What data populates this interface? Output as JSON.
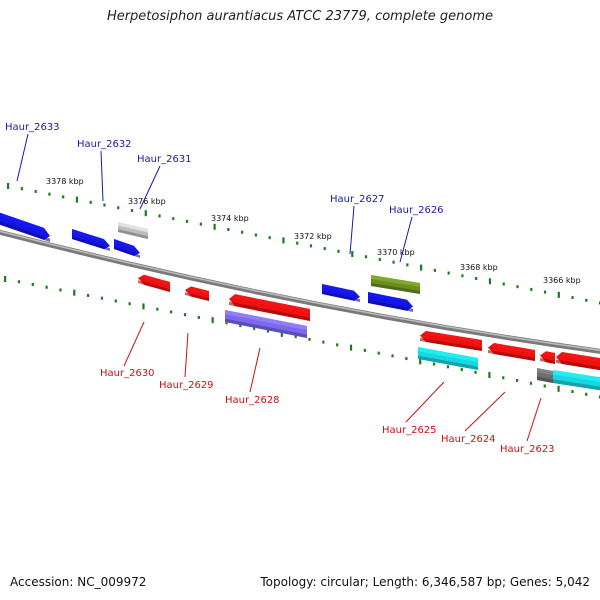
{
  "title": "Herpetosiphon aurantiacus ATCC 23779, complete genome",
  "footer": {
    "accession": "Accession: NC_009972",
    "summary": "Topology: circular; Length: 6,346,587 bp; Genes: 5,042"
  },
  "colors": {
    "backbone": "#888888",
    "tick": "#1e7a1e",
    "forward_label": "#1a1aa6",
    "reverse_label": "#cc1111",
    "blue_gene": "#1414e6",
    "red_gene": "#ee1111",
    "gray_gene": "#bdbdbd",
    "olive_gene": "#6b8e23",
    "purple_gene": "#7b68ee",
    "cyan_gene": "#19d7e0",
    "dark_gray_gene": "#6e6e6e"
  },
  "scale_labels": [
    "3378 kbp",
    "3376 kbp",
    "3374 kbp",
    "3372 kbp",
    "3370 kbp",
    "3368 kbp",
    "3366 kbp"
  ],
  "genes_forward": [
    "Haur_2633",
    "Haur_2632",
    "Haur_2631",
    "Haur_2627",
    "Haur_2626"
  ],
  "genes_reverse": [
    "Haur_2630",
    "Haur_2629",
    "Haur_2628",
    "Haur_2625",
    "Haur_2624",
    "Haur_2623"
  ]
}
